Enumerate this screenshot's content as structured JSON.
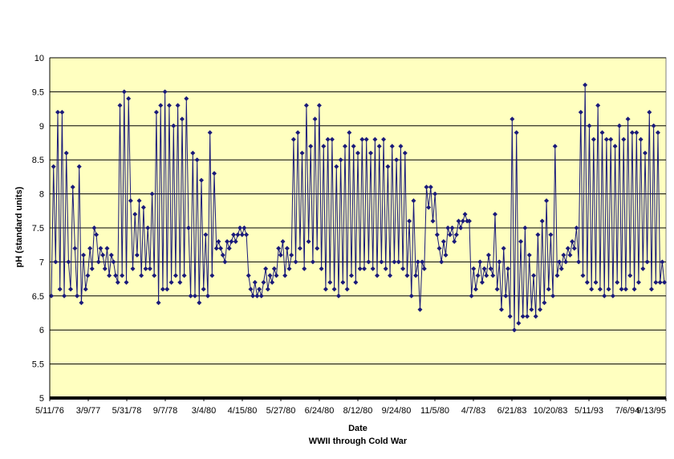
{
  "chart_data": {
    "type": "line",
    "title": "",
    "xlabel": "Date",
    "subtitle": "WWII through Cold War",
    "ylabel": "pH (standard units)",
    "ylim": [
      5,
      10
    ],
    "ytick_step": 0.5,
    "ytick_labels": [
      "5",
      "5.5",
      "6",
      "6.5",
      "7",
      "7.5",
      "8",
      "8.5",
      "9",
      "9.5",
      "10"
    ],
    "xtick_labels": [
      "5/11/76",
      "3/9/77",
      "5/31/78",
      "9/7/78",
      "3/4/80",
      "4/15/80",
      "5/27/80",
      "6/24/80",
      "8/12/80",
      "9/24/80",
      "11/5/80",
      "4/7/83",
      "6/21/83",
      "10/20/83",
      "5/11/93",
      "7/6/94",
      "9/13/95"
    ],
    "grid": true,
    "legend": "none",
    "colors": {
      "series": "#1a1a7a",
      "plot_bg": "#ffffc0",
      "grid": "#000000"
    },
    "series": [
      {
        "values": [
          6.5,
          8.4,
          7.0,
          9.2,
          6.6,
          9.2,
          6.5,
          8.6,
          7.0,
          6.6,
          8.1,
          7.2,
          6.5,
          8.4,
          6.4,
          7.1,
          6.6,
          6.8,
          7.2,
          6.9,
          7.5,
          7.4,
          7.0,
          7.2,
          7.1,
          6.9,
          7.2,
          6.8,
          7.1,
          7.0,
          6.8,
          6.7,
          9.3,
          6.8,
          9.5,
          6.7,
          9.4,
          7.9,
          6.9,
          7.7,
          7.1,
          7.9,
          6.8,
          7.8,
          6.9,
          7.5,
          6.9,
          8.0,
          6.8,
          9.2,
          6.4,
          9.3,
          6.6,
          9.5,
          6.6,
          9.3,
          6.7,
          9.0,
          6.8,
          9.3,
          6.7,
          9.1,
          6.8,
          9.4,
          7.5,
          6.5,
          8.6,
          6.5,
          8.5,
          6.4,
          8.2,
          6.6,
          7.4,
          6.5,
          8.9,
          6.8,
          8.3,
          7.2,
          7.3,
          7.2,
          7.1,
          7.0,
          7.3,
          7.2,
          7.3,
          7.4,
          7.3,
          7.4,
          7.5,
          7.4,
          7.5,
          7.4,
          6.8,
          6.6,
          6.5,
          6.7,
          6.5,
          6.6,
          6.5,
          6.7,
          6.9,
          6.6,
          6.8,
          6.7,
          6.9,
          6.8,
          7.2,
          7.1,
          7.3,
          6.8,
          7.2,
          6.9,
          7.1,
          8.8,
          7.0,
          8.9,
          7.2,
          8.6,
          6.9,
          9.3,
          7.3,
          8.7,
          7.0,
          9.1,
          7.2,
          9.3,
          6.9,
          8.7,
          6.6,
          8.8,
          6.7,
          8.8,
          6.6,
          8.4,
          6.5,
          8.5,
          6.7,
          8.7,
          6.6,
          8.9,
          6.8,
          8.7,
          6.7,
          8.6,
          6.9,
          8.8,
          6.9,
          8.8,
          7.0,
          8.6,
          6.9,
          8.8,
          6.8,
          8.7,
          7.0,
          8.8,
          6.9,
          8.4,
          6.8,
          8.7,
          7.0,
          8.5,
          7.0,
          8.7,
          6.9,
          8.6,
          6.8,
          7.6,
          6.5,
          7.9,
          6.8,
          7.0,
          6.3,
          7.0,
          6.9,
          8.1,
          7.8,
          8.1,
          7.6,
          8.0,
          7.4,
          7.2,
          7.0,
          7.3,
          7.1,
          7.5,
          7.4,
          7.5,
          7.3,
          7.4,
          7.6,
          7.5,
          7.6,
          7.7,
          7.6,
          7.6,
          6.5,
          6.9,
          6.6,
          6.8,
          7.0,
          6.7,
          6.9,
          6.8,
          7.1,
          6.9,
          6.8,
          7.7,
          6.6,
          7.0,
          6.3,
          7.2,
          6.5,
          6.9,
          6.2,
          9.1,
          6.0,
          8.9,
          6.1,
          7.3,
          6.2,
          7.5,
          6.2,
          7.1,
          6.3,
          6.8,
          6.2,
          7.4,
          6.3,
          7.6,
          6.4,
          7.9,
          6.6,
          7.4,
          6.5,
          8.7,
          6.8,
          7.0,
          6.9,
          7.1,
          7.0,
          7.2,
          7.1,
          7.3,
          7.2,
          7.5,
          7.0,
          9.2,
          6.8,
          9.6,
          6.7,
          9.0,
          6.6,
          8.8,
          6.7,
          9.3,
          6.6,
          8.9,
          6.5,
          8.8,
          6.6,
          8.8,
          6.5,
          8.7,
          6.7,
          9.0,
          6.6,
          8.8,
          6.6,
          9.1,
          6.8,
          8.9,
          6.6,
          8.9,
          6.7,
          8.8,
          6.9,
          8.6,
          7.0,
          9.2,
          6.6,
          9.0,
          6.7,
          8.9,
          6.7,
          7.0,
          6.7
        ]
      }
    ]
  }
}
